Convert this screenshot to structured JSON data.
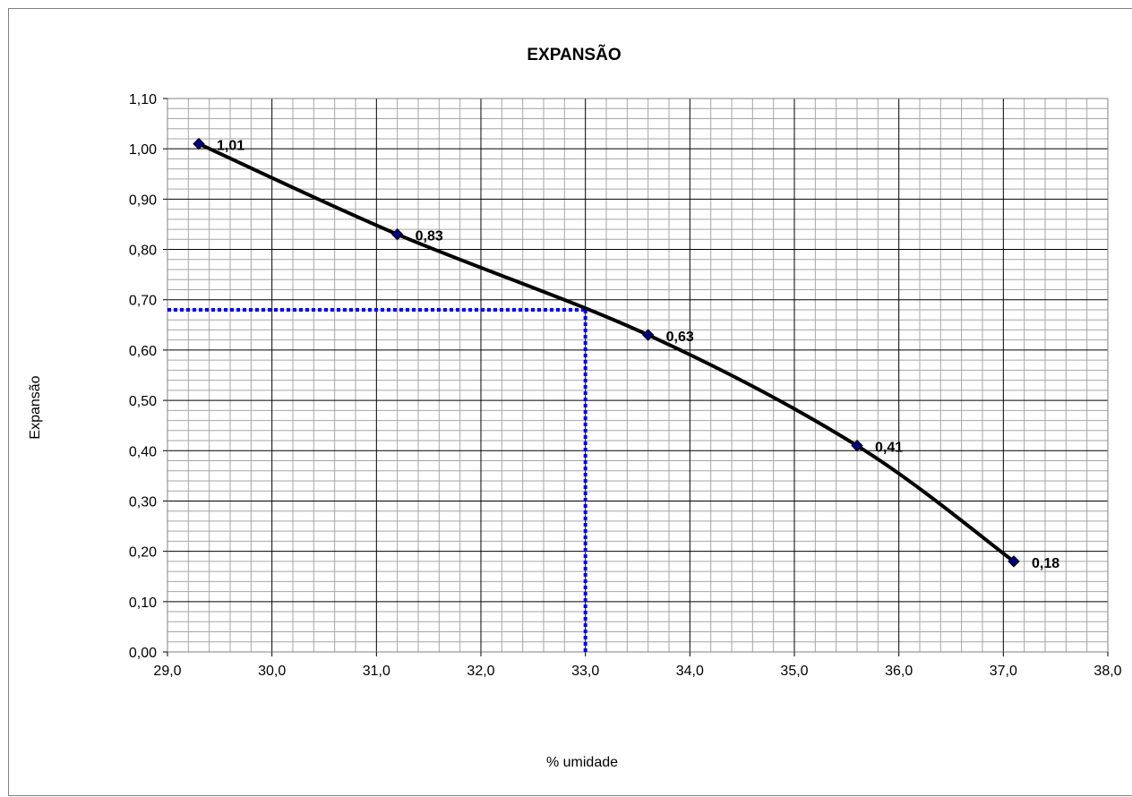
{
  "chart_data": {
    "type": "line",
    "title": "EXPANSÃO",
    "xlabel": "% umidade",
    "ylabel": "Expansão",
    "xlim": [
      29.0,
      38.0
    ],
    "ylim": [
      0.0,
      1.1
    ],
    "x_ticks": [
      "29,0",
      "30,0",
      "31,0",
      "32,0",
      "33,0",
      "34,0",
      "35,0",
      "36,0",
      "37,0",
      "38,0"
    ],
    "y_ticks": [
      "0,00",
      "0,10",
      "0,20",
      "0,30",
      "0,40",
      "0,50",
      "0,60",
      "0,70",
      "0,80",
      "0,90",
      "1,00",
      "1,10"
    ],
    "grid": true,
    "minor_grid": true,
    "series": [
      {
        "x": [
          29.3,
          31.2,
          33.6,
          35.6,
          37.1
        ],
        "y": [
          1.01,
          0.83,
          0.63,
          0.41,
          0.18
        ],
        "data_labels": [
          "1,01",
          "0,83",
          "0,63",
          "0,41",
          "0,18"
        ],
        "line_color": "#000000",
        "marker_color": "#000080",
        "marker": "diamond"
      }
    ],
    "reference_lines": {
      "x": 33.0,
      "y": 0.68,
      "color": "#0000ff",
      "style": "dotted"
    },
    "colors": {
      "major_grid": "#000000",
      "minor_grid": "#a6a6a6",
      "background": "#ffffff"
    }
  }
}
